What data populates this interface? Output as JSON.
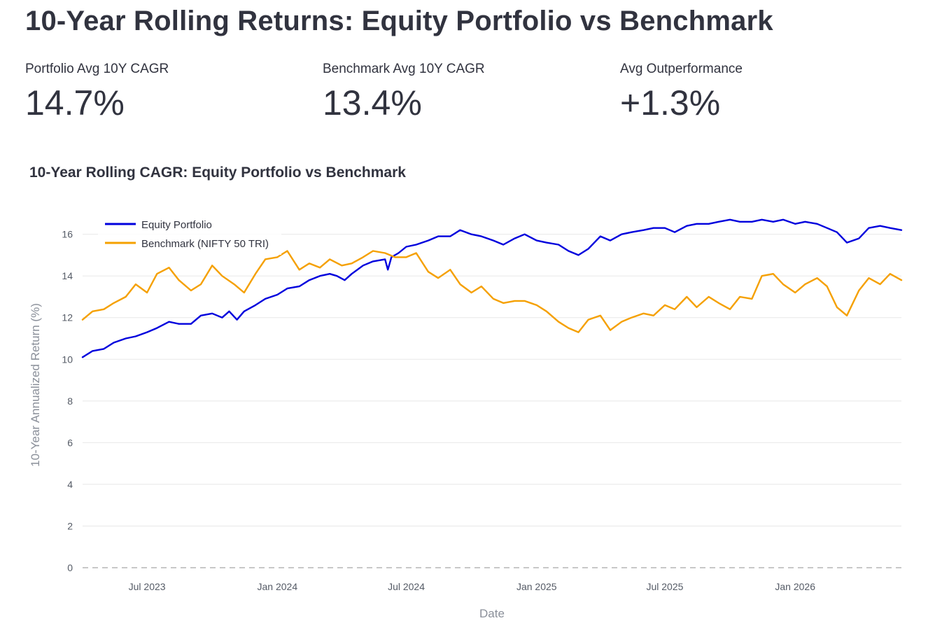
{
  "page": {
    "title": "10-Year Rolling Returns: Equity Portfolio vs Benchmark"
  },
  "metrics": [
    {
      "label": "Portfolio Avg 10Y CAGR",
      "value": "14.7%"
    },
    {
      "label": "Benchmark Avg 10Y CAGR",
      "value": "13.4%"
    },
    {
      "label": "Avg Outperformance",
      "value": "+1.3%"
    }
  ],
  "colors": {
    "portfolio": "#0000dd",
    "benchmark": "#f5a000",
    "grid": "#e8e8e8",
    "zero_line": "#c8c8c8"
  },
  "chart_data": {
    "type": "line",
    "title": "10-Year Rolling CAGR: Equity Portfolio vs Benchmark",
    "xlabel": "Date",
    "ylabel": "10-Year Annualized Return (%)",
    "xlim": [
      "2023-04-01",
      "2026-05-31"
    ],
    "ylim": [
      0,
      17.5
    ],
    "yticks": [
      0,
      2,
      4,
      6,
      8,
      10,
      12,
      14,
      16
    ],
    "xticks": [
      {
        "date": "2023-07-01",
        "label": "Jul 2023"
      },
      {
        "date": "2024-01-01",
        "label": "Jan 2024"
      },
      {
        "date": "2024-07-01",
        "label": "Jul 2024"
      },
      {
        "date": "2025-01-01",
        "label": "Jan 2025"
      },
      {
        "date": "2025-07-01",
        "label": "Jul 2025"
      },
      {
        "date": "2026-01-01",
        "label": "Jan 2026"
      }
    ],
    "grid": true,
    "zero_line": "dashed",
    "legend_position": "top-left",
    "series": [
      {
        "name": "Equity Portfolio",
        "color": "#0000dd",
        "points": [
          [
            "2023-04-01",
            10.1
          ],
          [
            "2023-04-15",
            10.4
          ],
          [
            "2023-05-01",
            10.5
          ],
          [
            "2023-05-15",
            10.8
          ],
          [
            "2023-06-01",
            11.0
          ],
          [
            "2023-06-15",
            11.1
          ],
          [
            "2023-07-01",
            11.3
          ],
          [
            "2023-07-15",
            11.5
          ],
          [
            "2023-08-01",
            11.8
          ],
          [
            "2023-08-15",
            11.7
          ],
          [
            "2023-09-01",
            11.7
          ],
          [
            "2023-09-15",
            12.1
          ],
          [
            "2023-10-01",
            12.2
          ],
          [
            "2023-10-15",
            12.0
          ],
          [
            "2023-10-25",
            12.3
          ],
          [
            "2023-11-05",
            11.9
          ],
          [
            "2023-11-15",
            12.3
          ],
          [
            "2023-12-01",
            12.6
          ],
          [
            "2023-12-15",
            12.9
          ],
          [
            "2024-01-01",
            13.1
          ],
          [
            "2024-01-15",
            13.4
          ],
          [
            "2024-02-01",
            13.5
          ],
          [
            "2024-02-15",
            13.8
          ],
          [
            "2024-03-01",
            14.0
          ],
          [
            "2024-03-15",
            14.1
          ],
          [
            "2024-03-25",
            14.0
          ],
          [
            "2024-04-05",
            13.8
          ],
          [
            "2024-04-15",
            14.1
          ],
          [
            "2024-05-01",
            14.5
          ],
          [
            "2024-05-15",
            14.7
          ],
          [
            "2024-06-01",
            14.8
          ],
          [
            "2024-06-05",
            14.3
          ],
          [
            "2024-06-10",
            14.9
          ],
          [
            "2024-06-20",
            15.1
          ],
          [
            "2024-07-01",
            15.4
          ],
          [
            "2024-07-15",
            15.5
          ],
          [
            "2024-08-01",
            15.7
          ],
          [
            "2024-08-15",
            15.9
          ],
          [
            "2024-09-01",
            15.9
          ],
          [
            "2024-09-15",
            16.2
          ],
          [
            "2024-10-01",
            16.0
          ],
          [
            "2024-10-15",
            15.9
          ],
          [
            "2024-11-01",
            15.7
          ],
          [
            "2024-11-15",
            15.5
          ],
          [
            "2024-12-01",
            15.8
          ],
          [
            "2024-12-15",
            16.0
          ],
          [
            "2025-01-01",
            15.7
          ],
          [
            "2025-01-15",
            15.6
          ],
          [
            "2025-02-01",
            15.5
          ],
          [
            "2025-02-15",
            15.2
          ],
          [
            "2025-03-01",
            15.0
          ],
          [
            "2025-03-15",
            15.3
          ],
          [
            "2025-04-01",
            15.9
          ],
          [
            "2025-04-15",
            15.7
          ],
          [
            "2025-05-01",
            16.0
          ],
          [
            "2025-05-15",
            16.1
          ],
          [
            "2025-06-01",
            16.2
          ],
          [
            "2025-06-15",
            16.3
          ],
          [
            "2025-07-01",
            16.3
          ],
          [
            "2025-07-15",
            16.1
          ],
          [
            "2025-08-01",
            16.4
          ],
          [
            "2025-08-15",
            16.5
          ],
          [
            "2025-09-01",
            16.5
          ],
          [
            "2025-09-15",
            16.6
          ],
          [
            "2025-10-01",
            16.7
          ],
          [
            "2025-10-15",
            16.6
          ],
          [
            "2025-11-01",
            16.6
          ],
          [
            "2025-11-15",
            16.7
          ],
          [
            "2025-12-01",
            16.6
          ],
          [
            "2025-12-15",
            16.7
          ],
          [
            "2026-01-01",
            16.5
          ],
          [
            "2026-01-15",
            16.6
          ],
          [
            "2026-02-01",
            16.5
          ],
          [
            "2026-02-15",
            16.3
          ],
          [
            "2026-03-01",
            16.1
          ],
          [
            "2026-03-15",
            15.6
          ],
          [
            "2026-04-01",
            15.8
          ],
          [
            "2026-04-15",
            16.3
          ],
          [
            "2026-05-01",
            16.4
          ],
          [
            "2026-05-15",
            16.3
          ],
          [
            "2026-05-31",
            16.2
          ]
        ]
      },
      {
        "name": "Benchmark (NIFTY 50 TRI)",
        "color": "#f5a000",
        "points": [
          [
            "2023-04-01",
            11.9
          ],
          [
            "2023-04-15",
            12.3
          ],
          [
            "2023-05-01",
            12.4
          ],
          [
            "2023-05-15",
            12.7
          ],
          [
            "2023-06-01",
            13.0
          ],
          [
            "2023-06-15",
            13.6
          ],
          [
            "2023-07-01",
            13.2
          ],
          [
            "2023-07-15",
            14.1
          ],
          [
            "2023-08-01",
            14.4
          ],
          [
            "2023-08-15",
            13.8
          ],
          [
            "2023-09-01",
            13.3
          ],
          [
            "2023-09-15",
            13.6
          ],
          [
            "2023-10-01",
            14.5
          ],
          [
            "2023-10-15",
            14.0
          ],
          [
            "2023-11-01",
            13.6
          ],
          [
            "2023-11-15",
            13.2
          ],
          [
            "2023-12-01",
            14.1
          ],
          [
            "2023-12-15",
            14.8
          ],
          [
            "2024-01-01",
            14.9
          ],
          [
            "2024-01-15",
            15.2
          ],
          [
            "2024-02-01",
            14.3
          ],
          [
            "2024-02-15",
            14.6
          ],
          [
            "2024-03-01",
            14.4
          ],
          [
            "2024-03-15",
            14.8
          ],
          [
            "2024-04-01",
            14.5
          ],
          [
            "2024-04-15",
            14.6
          ],
          [
            "2024-05-01",
            14.9
          ],
          [
            "2024-05-15",
            15.2
          ],
          [
            "2024-06-01",
            15.1
          ],
          [
            "2024-06-15",
            14.9
          ],
          [
            "2024-07-01",
            14.9
          ],
          [
            "2024-07-15",
            15.1
          ],
          [
            "2024-08-01",
            14.2
          ],
          [
            "2024-08-15",
            13.9
          ],
          [
            "2024-09-01",
            14.3
          ],
          [
            "2024-09-15",
            13.6
          ],
          [
            "2024-10-01",
            13.2
          ],
          [
            "2024-10-15",
            13.5
          ],
          [
            "2024-11-01",
            12.9
          ],
          [
            "2024-11-15",
            12.7
          ],
          [
            "2024-12-01",
            12.8
          ],
          [
            "2024-12-15",
            12.8
          ],
          [
            "2025-01-01",
            12.6
          ],
          [
            "2025-01-15",
            12.3
          ],
          [
            "2025-02-01",
            11.8
          ],
          [
            "2025-02-15",
            11.5
          ],
          [
            "2025-03-01",
            11.3
          ],
          [
            "2025-03-15",
            11.9
          ],
          [
            "2025-04-01",
            12.1
          ],
          [
            "2025-04-15",
            11.4
          ],
          [
            "2025-05-01",
            11.8
          ],
          [
            "2025-05-15",
            12.0
          ],
          [
            "2025-06-01",
            12.2
          ],
          [
            "2025-06-15",
            12.1
          ],
          [
            "2025-07-01",
            12.6
          ],
          [
            "2025-07-15",
            12.4
          ],
          [
            "2025-08-01",
            13.0
          ],
          [
            "2025-08-15",
            12.5
          ],
          [
            "2025-09-01",
            13.0
          ],
          [
            "2025-09-15",
            12.7
          ],
          [
            "2025-10-01",
            12.4
          ],
          [
            "2025-10-15",
            13.0
          ],
          [
            "2025-11-01",
            12.9
          ],
          [
            "2025-11-15",
            14.0
          ],
          [
            "2025-12-01",
            14.1
          ],
          [
            "2025-12-15",
            13.6
          ],
          [
            "2026-01-01",
            13.2
          ],
          [
            "2026-01-15",
            13.6
          ],
          [
            "2026-02-01",
            13.9
          ],
          [
            "2026-02-15",
            13.5
          ],
          [
            "2026-03-01",
            12.5
          ],
          [
            "2026-03-15",
            12.1
          ],
          [
            "2026-04-01",
            13.3
          ],
          [
            "2026-04-15",
            13.9
          ],
          [
            "2026-05-01",
            13.6
          ],
          [
            "2026-05-15",
            14.1
          ],
          [
            "2026-05-31",
            13.8
          ]
        ]
      }
    ]
  }
}
